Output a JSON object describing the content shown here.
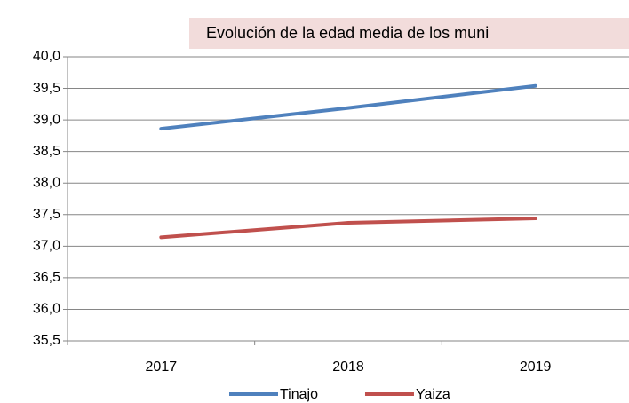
{
  "chart_data": {
    "type": "line",
    "title": "Evolución de la edad media de los muni",
    "categories": [
      "2017",
      "2018",
      "2019"
    ],
    "series": [
      {
        "name": "Tinajo",
        "color": "#4f81bd",
        "values": [
          38.86,
          39.19,
          39.54
        ]
      },
      {
        "name": "Yaiza",
        "color": "#c0504d",
        "values": [
          37.14,
          37.37,
          37.44
        ]
      }
    ],
    "ylim": [
      35.5,
      40.0
    ],
    "yticks": [
      {
        "value": 35.5,
        "label": "35,5"
      },
      {
        "value": 36.0,
        "label": "36,0"
      },
      {
        "value": 36.5,
        "label": "36,5"
      },
      {
        "value": 37.0,
        "label": "37,0"
      },
      {
        "value": 37.5,
        "label": "37,5"
      },
      {
        "value": 38.0,
        "label": "38,0"
      },
      {
        "value": 38.5,
        "label": "38,5"
      },
      {
        "value": 39.0,
        "label": "39,0"
      },
      {
        "value": 39.5,
        "label": "39,5"
      },
      {
        "value": 40.0,
        "label": "40,0"
      }
    ],
    "grid": true,
    "legend": "bottom"
  }
}
